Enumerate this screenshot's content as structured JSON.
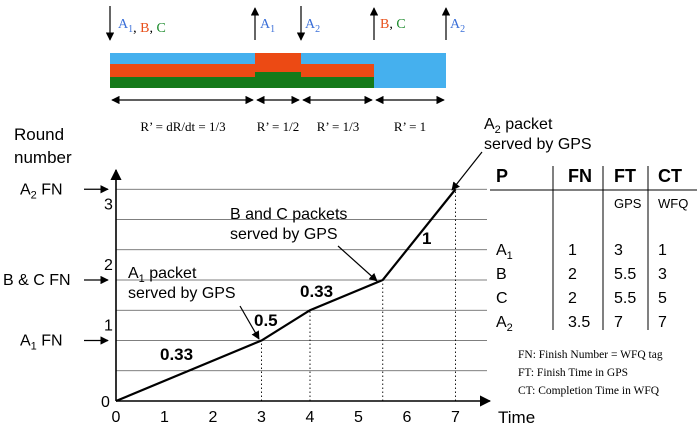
{
  "timeline": {
    "arrivals": [
      {
        "parts": [
          {
            "text": "A",
            "sub": "1",
            "color": "#3a6fd8"
          },
          {
            "text": ", ",
            "color": "#000"
          },
          {
            "text": "B",
            "color": "#e8501a"
          },
          {
            "text": ", ",
            "color": "#000"
          },
          {
            "text": "C",
            "color": "#1a8a2a"
          }
        ],
        "direction": "down"
      },
      {
        "parts": [
          {
            "text": "A",
            "sub": "1",
            "color": "#3a6fd8"
          }
        ],
        "direction": "up"
      },
      {
        "parts": [
          {
            "text": "A",
            "sub": "2",
            "color": "#3a6fd8"
          }
        ],
        "direction": "down"
      },
      {
        "parts": [
          {
            "text": "B",
            "color": "#e8501a"
          },
          {
            "text": ", ",
            "color": "#000"
          },
          {
            "text": "C",
            "color": "#1a8a2a"
          }
        ],
        "direction": "up"
      },
      {
        "parts": [
          {
            "text": "A",
            "sub": "2",
            "color": "#3a6fd8"
          }
        ],
        "direction": "up"
      }
    ],
    "rate_labels": [
      "R’ = dR/dt = 1/3",
      "R’ = 1/2",
      "R’ = 1/3",
      "R’ = 1"
    ],
    "colors": {
      "blue": "#45b0ee",
      "orange": "#ec4a14",
      "green": "#157a1a"
    }
  },
  "y_title": [
    "Round",
    "number"
  ],
  "y_markers": [
    {
      "label": "A",
      "sub": "2",
      "rest": " FN",
      "value": 3.5
    },
    {
      "label": "B & C FN",
      "value": 2
    },
    {
      "label": "A",
      "sub": "1",
      "rest": " FN",
      "value": 1
    }
  ],
  "annotations": {
    "a2_served": [
      "A",
      "2",
      " packet",
      "served by GPS"
    ],
    "bc_served": [
      "B and C packets",
      "served by GPS"
    ],
    "a1_served": [
      "A",
      "1",
      " packet",
      "served by GPS"
    ]
  },
  "slope_labels": [
    {
      "text": "0.33",
      "at": 1.5
    },
    {
      "text": "0.5",
      "at": 3.5
    },
    {
      "text": "0.33",
      "at": 4.9
    },
    {
      "text": "1",
      "at": 6.3
    }
  ],
  "chart_data": {
    "type": "line",
    "xlabel": "Time",
    "ylabel": "Round number",
    "x_ticks": [
      "0",
      "1",
      "2",
      "3",
      "4",
      "5",
      "6",
      "7"
    ],
    "y_ticks": [
      "0",
      "1",
      "2",
      "3"
    ],
    "xlim": [
      0,
      7.8
    ],
    "ylim": [
      0,
      3.9
    ],
    "grid_lines_y": [
      0.5,
      1,
      1.5,
      2,
      2.5,
      3,
      3.5
    ],
    "series": [
      {
        "x": [
          0,
          3,
          4,
          5.5,
          7
        ],
        "y": [
          0,
          1,
          1.5,
          2,
          3.5
        ]
      }
    ],
    "dotted_x": [
      3,
      4,
      5.5,
      7
    ]
  },
  "table": {
    "headers": [
      "P",
      "FN",
      "FT",
      "CT"
    ],
    "subheaders": [
      "",
      "",
      "GPS",
      "WFQ"
    ],
    "rows": [
      {
        "p": "A",
        "sub": "1",
        "fn": "1",
        "ft": "3",
        "ct": "1"
      },
      {
        "p": "B",
        "sub": "",
        "fn": "2",
        "ft": "5.5",
        "ct": "3"
      },
      {
        "p": "C",
        "sub": "",
        "fn": "2",
        "ft": "5.5",
        "ct": "5"
      },
      {
        "p": "A",
        "sub": "2",
        "fn": "3.5",
        "ft": "7",
        "ct": "7"
      }
    ]
  },
  "legend": [
    "FN: Finish Number = WFQ tag",
    "FT: Finish Time in GPS",
    "CT: Completion Time in WFQ"
  ]
}
